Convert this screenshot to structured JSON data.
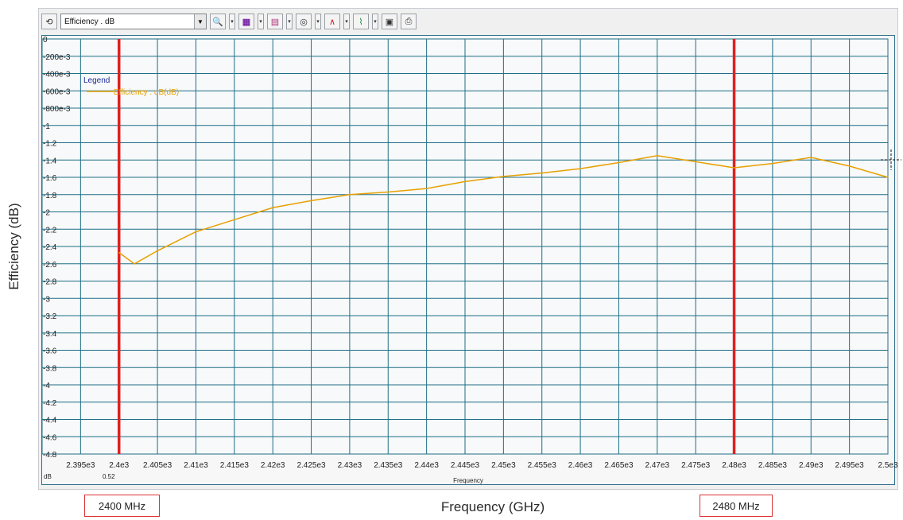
{
  "toolbar": {
    "combo_value": "Efficiency . dB",
    "buttons": [
      "reset-icon",
      "zoom-icon",
      "axis-icon",
      "grid-icon",
      "marker-icon",
      "curve-icon",
      "scale-icon",
      "copy-icon",
      "print-icon"
    ]
  },
  "axis_titles": {
    "y": "Efficiency (dB)",
    "x": "Frequency (GHz)"
  },
  "plot_footer": {
    "unit": "dB",
    "value": "0.52",
    "xname": "Frequency"
  },
  "markers": {
    "left_label": "2400 MHz",
    "right_label": "2480 MHz"
  },
  "legend": {
    "title": "Legend",
    "entry": "Efficiency . dB(dB)"
  },
  "colors": {
    "curve": "#e8a000",
    "grid": "#1f6e86",
    "marker": "#e02020",
    "legend_title": "#1a2b9a"
  },
  "chart_data": {
    "type": "line",
    "title": "",
    "xlabel": "Frequency (GHz)",
    "ylabel": "Efficiency (dB)",
    "xlim": [
      2390,
      2500
    ],
    "ylim": [
      -4.8,
      0
    ],
    "xticks": [
      2395,
      2400,
      2405,
      2410,
      2415,
      2420,
      2425,
      2430,
      2435,
      2440,
      2445,
      2450,
      2455,
      2460,
      2465,
      2470,
      2475,
      2480,
      2485,
      2490,
      2495,
      2500
    ],
    "xtick_labels": [
      "2.395e3",
      "2.4e3",
      "2.405e3",
      "2.41e3",
      "2.415e3",
      "2.42e3",
      "2.425e3",
      "2.43e3",
      "2.435e3",
      "2.44e3",
      "2.445e3",
      "2.45e3",
      "2.455e3",
      "2.46e3",
      "2.465e3",
      "2.47e3",
      "2.475e3",
      "2.48e3",
      "2.485e3",
      "2.49e3",
      "2.495e3",
      "2.5e3"
    ],
    "yticks": [
      0,
      -0.2,
      -0.4,
      -0.6,
      -0.8,
      -1,
      -1.2,
      -1.4,
      -1.6,
      -1.8,
      -2,
      -2.2,
      -2.4,
      -2.6,
      -2.8,
      -3,
      -3.2,
      -3.4,
      -3.6,
      -3.8,
      -4,
      -4.2,
      -4.4,
      -4.6,
      -4.8
    ],
    "ytick_labels": [
      "0",
      "-200e-3",
      "-400e-3",
      "-600e-3",
      "-800e-3",
      "-1",
      "-1.2",
      "-1.4",
      "-1.6",
      "-1.8",
      "-2",
      "-2.2",
      "-2.4",
      "-2.6",
      "-2.8",
      "-3",
      "-3.2",
      "-3.4",
      "-3.6",
      "-3.8",
      "-4",
      "-4.2",
      "-4.4",
      "-4.6",
      "-4.8"
    ],
    "grid": true,
    "legend_position": "top-left",
    "vertical_markers": [
      2400,
      2480
    ],
    "series": [
      {
        "name": "Efficiency . dB(dB)",
        "x": [
          2400,
          2402,
          2405,
          2410,
          2415,
          2420,
          2425,
          2430,
          2435,
          2440,
          2445,
          2450,
          2455,
          2460,
          2465,
          2470,
          2475,
          2480,
          2485,
          2490,
          2495,
          2500
        ],
        "values": [
          -2.47,
          -2.6,
          -2.45,
          -2.23,
          -2.09,
          -1.95,
          -1.87,
          -1.8,
          -1.77,
          -1.73,
          -1.65,
          -1.59,
          -1.55,
          -1.5,
          -1.43,
          -1.35,
          -1.42,
          -1.49,
          -1.44,
          -1.37,
          -1.47,
          -1.6
        ]
      }
    ]
  }
}
